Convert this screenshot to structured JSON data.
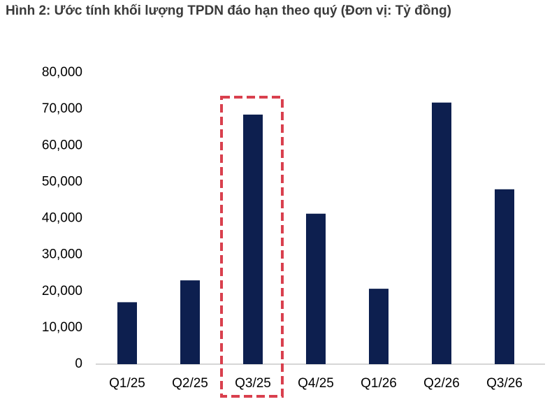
{
  "chart_data": {
    "type": "bar",
    "title": "Hình 2: Ước tính khối lượng TPDN đáo hạn theo quý (Đơn vị: Tỷ đồng)",
    "categories": [
      "Q1/25",
      "Q2/25",
      "Q3/25",
      "Q4/25",
      "Q1/26",
      "Q2/26",
      "Q3/26"
    ],
    "values": [
      17000,
      23000,
      68500,
      41300,
      20700,
      71800,
      48000
    ],
    "color": "#0d1f4f",
    "ylim": [
      0,
      80000
    ],
    "yticks": [
      0,
      {
        "value": 10000,
        "label": "10,000"
      },
      {
        "value": 20000,
        "label": "20,000"
      },
      {
        "value": 30000,
        "label": "30,000"
      },
      {
        "value": 40000,
        "label": "40,000"
      },
      {
        "value": 50000,
        "label": "50,000"
      },
      {
        "value": 60000,
        "label": "60,000"
      },
      {
        "value": 70000,
        "label": "70,000"
      },
      {
        "value": 80000,
        "label": "80,000"
      }
    ],
    "grid": false,
    "highlight_index": 2,
    "highlight_color": "#d9404e"
  }
}
